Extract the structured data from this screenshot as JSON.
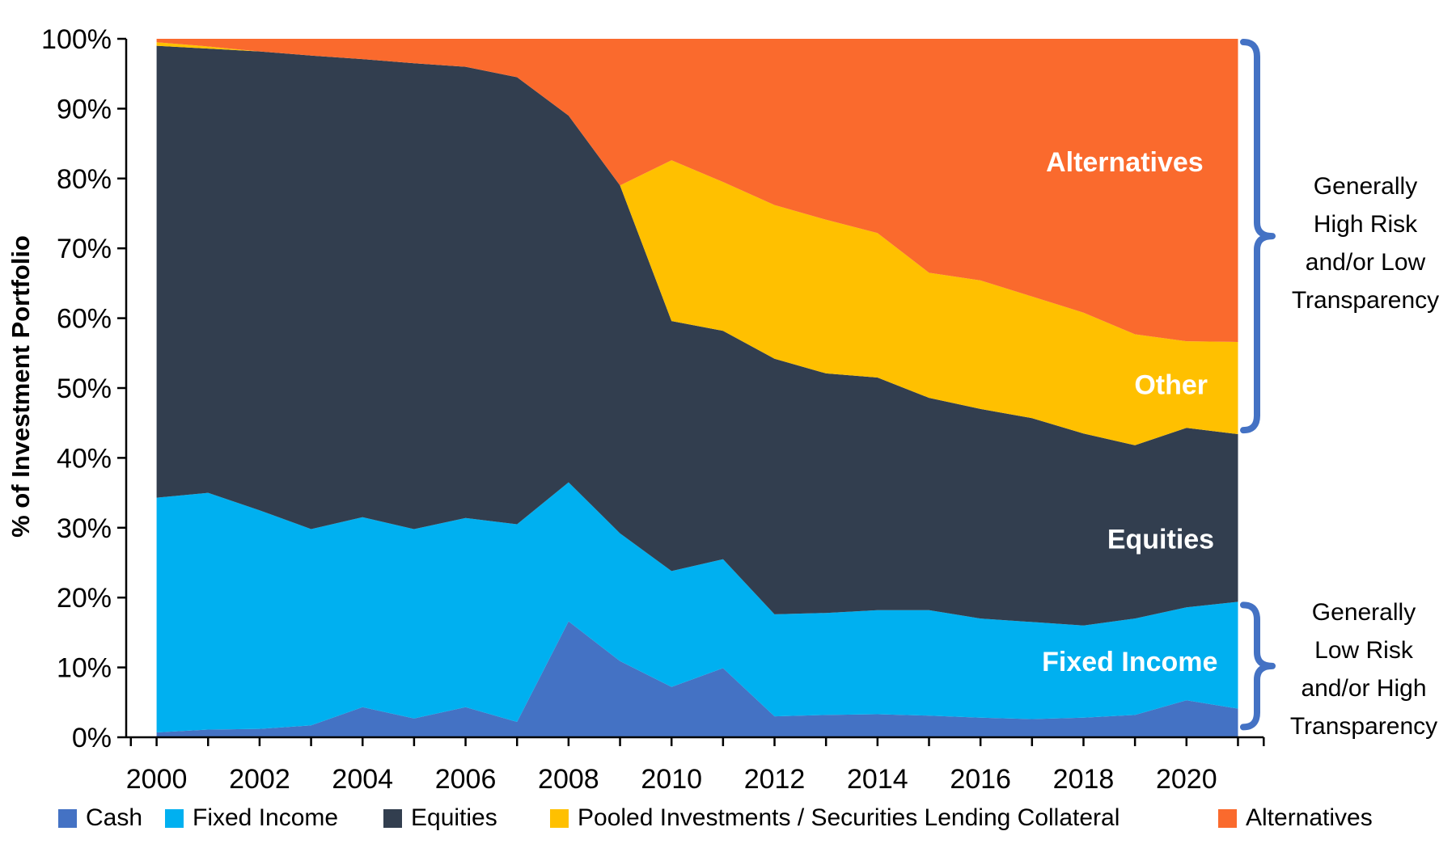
{
  "chart_data": {
    "type": "area",
    "stacked": true,
    "x": [
      2000,
      2001,
      2002,
      2003,
      2004,
      2005,
      2006,
      2007,
      2008,
      2009,
      2010,
      2011,
      2012,
      2013,
      2014,
      2015,
      2016,
      2017,
      2018,
      2019,
      2020,
      2021
    ],
    "series": [
      {
        "name": "Cash",
        "color": "#4472C4",
        "values": [
          0.7,
          1.1,
          1.2,
          1.7,
          4.3,
          2.7,
          4.3,
          2.2,
          16.6,
          10.9,
          7.2,
          9.9,
          3.0,
          3.2,
          3.3,
          3.1,
          2.8,
          2.6,
          2.8,
          3.2,
          5.3,
          4.1
        ]
      },
      {
        "name": "Fixed Income",
        "color": "#00B0F0",
        "values": [
          33.6,
          33.9,
          31.3,
          28.1,
          27.2,
          27.1,
          27.1,
          28.3,
          19.9,
          18.3,
          16.6,
          15.6,
          14.6,
          14.6,
          14.9,
          15.1,
          14.2,
          13.9,
          13.2,
          13.8,
          13.3,
          15.3
        ]
      },
      {
        "name": "Equities",
        "color": "#323E4F",
        "values": [
          64.7,
          63.6,
          65.7,
          67.8,
          65.6,
          66.7,
          64.6,
          64.0,
          52.5,
          49.8,
          35.8,
          32.7,
          36.6,
          34.3,
          33.3,
          30.4,
          30.0,
          29.2,
          27.5,
          24.8,
          25.7,
          24.0
        ]
      },
      {
        "name": "Pooled Investments / Securities Lending Collateral",
        "color": "#FFC000",
        "values": [
          0.5,
          0.3,
          0,
          0,
          0,
          0,
          0,
          0,
          0,
          0,
          23.0,
          21.3,
          22.0,
          22.0,
          20.7,
          17.9,
          18.4,
          17.4,
          17.3,
          15.9,
          12.4,
          13.2
        ]
      },
      {
        "name": "Alternatives",
        "color": "#FA6A2D",
        "values": [
          0.5,
          1.1,
          1.8,
          2.4,
          2.9,
          3.5,
          4.0,
          5.5,
          11.0,
          21.0,
          17.4,
          20.5,
          23.8,
          25.9,
          27.8,
          33.5,
          34.6,
          36.9,
          39.2,
          42.3,
          43.3,
          43.4
        ]
      }
    ],
    "title": "",
    "xlabel": "",
    "ylabel": "% of Investment Portfolio",
    "ylim": [
      0,
      100
    ],
    "ytick_step": 10,
    "ytick_suffix": "%",
    "xtick_label_every": 2,
    "grid": false,
    "legend_position": "bottom",
    "area_labels": [
      {
        "text": "Alternatives",
        "year": 2018.8,
        "pct": 82.4
      },
      {
        "text": "Other",
        "year": 2019.7,
        "pct": 50.5
      },
      {
        "text": "Equities",
        "year": 2019.5,
        "pct": 28.4
      },
      {
        "text": "Fixed Income",
        "year": 2018.9,
        "pct": 10.9
      }
    ]
  },
  "annotations": {
    "bracket_color": "#4472C4",
    "top": {
      "text": "Generally\nHigh Risk\nand/or Low\nTransparency",
      "bracket_pct_span": [
        43.5,
        100
      ]
    },
    "bottom": {
      "text": "Generally\nLow Risk\nand/or High\nTransparency",
      "bracket_pct_span": [
        1.0,
        19.4
      ]
    }
  }
}
